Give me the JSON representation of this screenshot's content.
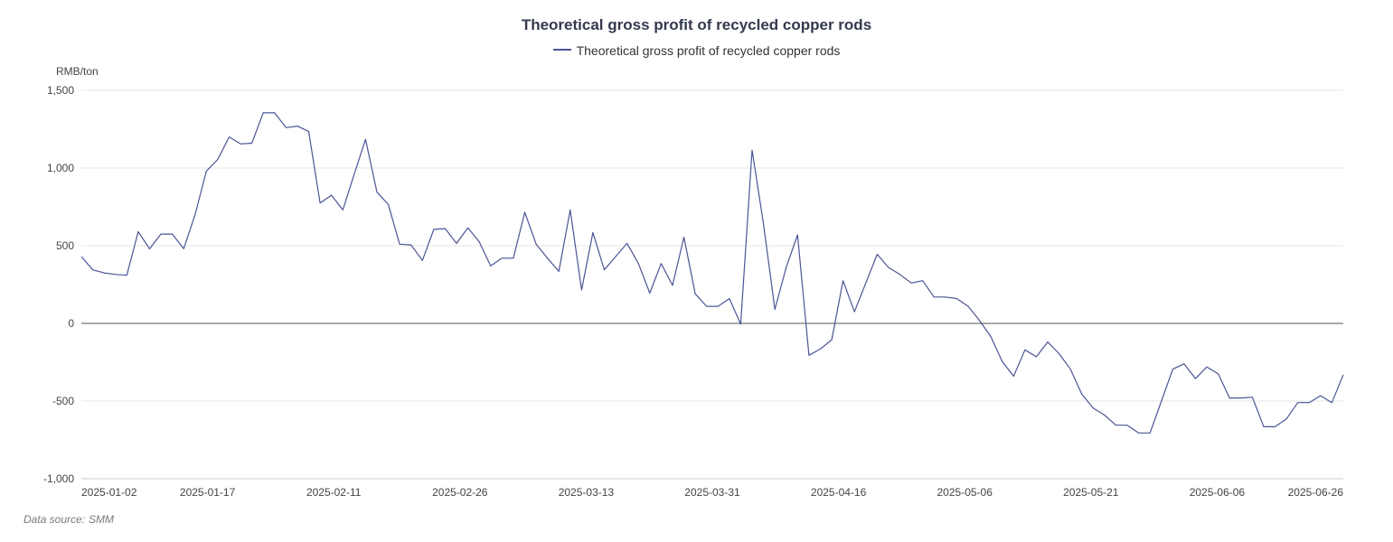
{
  "source": {
    "label": "Data source:",
    "name": "SMM"
  },
  "chart_data": {
    "type": "line",
    "title": "Theoretical gross profit of recycled copper rods",
    "ylabel": "RMB/ton",
    "xlabel": "",
    "ylim": [
      -1000,
      1500
    ],
    "yticks": [
      -1000,
      -500,
      0,
      500,
      1000,
      1500
    ],
    "ytick_labels": [
      "-1,000",
      "-500",
      "0",
      "500",
      "1,000",
      "1,500"
    ],
    "xtick_labels": [
      "2025-01-02",
      "2025-01-17",
      "2025-02-11",
      "2025-02-26",
      "2025-03-13",
      "2025-03-31",
      "2025-04-16",
      "2025-05-06",
      "2025-05-21",
      "2025-06-06",
      "2025-06-26"
    ],
    "grid": true,
    "legend_position": "top-center",
    "series_color": "#4a5595",
    "series": [
      {
        "name": "Theoretical gross profit of recycled copper rods",
        "values": [
          430,
          345,
          325,
          315,
          310,
          590,
          480,
          575,
          575,
          480,
          700,
          980,
          1055,
          1200,
          1155,
          1160,
          1355,
          1355,
          1260,
          1270,
          1235,
          775,
          825,
          730,
          960,
          1185,
          845,
          765,
          510,
          505,
          405,
          605,
          610,
          515,
          615,
          525,
          370,
          420,
          420,
          715,
          510,
          420,
          335,
          730,
          215,
          585,
          345,
          430,
          515,
          385,
          195,
          385,
          245,
          555,
          190,
          110,
          110,
          160,
          -5,
          1115,
          640,
          90,
          360,
          570,
          -205,
          -165,
          -105,
          275,
          75,
          260,
          445,
          360,
          315,
          260,
          275,
          170,
          170,
          160,
          110,
          20,
          -85,
          -245,
          -340,
          -170,
          -215,
          -120,
          -195,
          -295,
          -455,
          -545,
          -590,
          -655,
          -655,
          -705,
          -705,
          -500,
          -295,
          -260,
          -355,
          -280,
          -325,
          -480,
          -480,
          -475,
          -665,
          -665,
          -615,
          -510,
          -510,
          -465,
          -510,
          -330
        ]
      }
    ]
  }
}
